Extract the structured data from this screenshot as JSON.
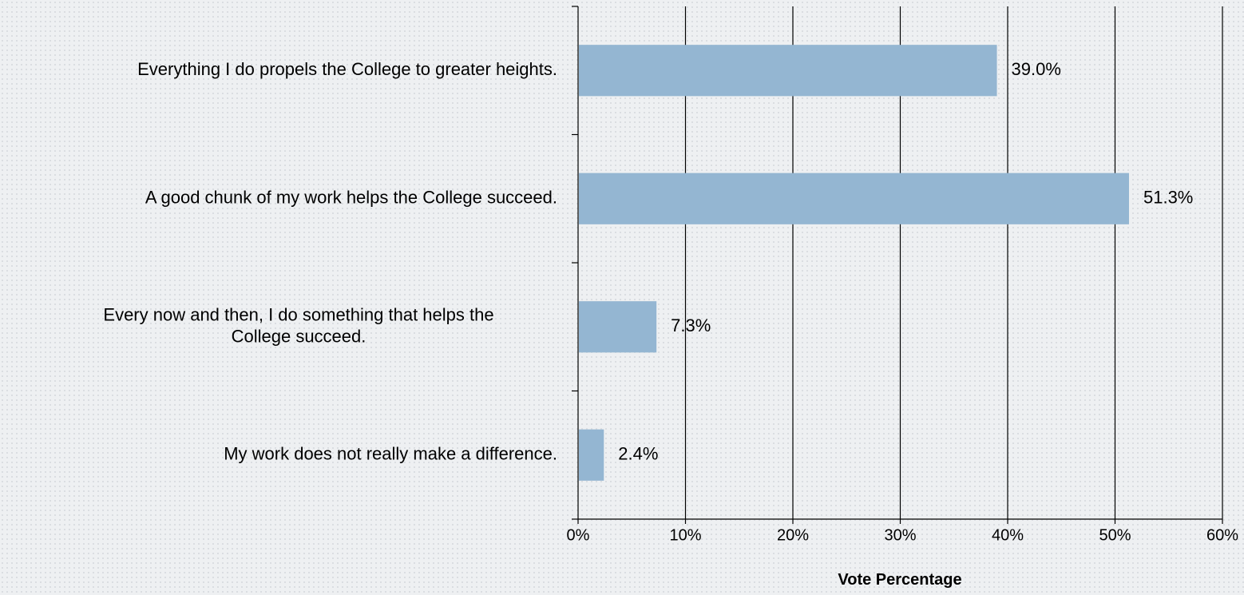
{
  "chart_data": {
    "type": "bar",
    "orientation": "horizontal",
    "categories": [
      "Everything I do propels the College to greater heights.",
      "A good chunk of my work helps the College succeed.",
      "Every now and then, I do something that helps the College succeed.",
      "My work does not really make a difference."
    ],
    "category_lines": [
      [
        "Everything I do propels the College to greater heights."
      ],
      [
        "A good chunk of my work helps the College succeed."
      ],
      [
        "Every now and then, I do something that helps the",
        "College succeed."
      ],
      [
        "My work does not really make a difference."
      ]
    ],
    "values": [
      39.0,
      51.3,
      7.3,
      2.4
    ],
    "data_labels": [
      "39.0%",
      "51.3%",
      "7.3%",
      "2.4%"
    ],
    "title": "",
    "xlabel": "Vote Percentage",
    "ylabel": "",
    "xlim": [
      0,
      60
    ],
    "x_ticks": [
      0,
      10,
      20,
      30,
      40,
      50,
      60
    ],
    "x_tick_labels": [
      "0%",
      "10%",
      "20%",
      "30%",
      "40%",
      "50%",
      "60%"
    ],
    "grid": "vertical",
    "legend": "none",
    "bar_color": "#94b6d2",
    "grid_color": "#000000"
  }
}
